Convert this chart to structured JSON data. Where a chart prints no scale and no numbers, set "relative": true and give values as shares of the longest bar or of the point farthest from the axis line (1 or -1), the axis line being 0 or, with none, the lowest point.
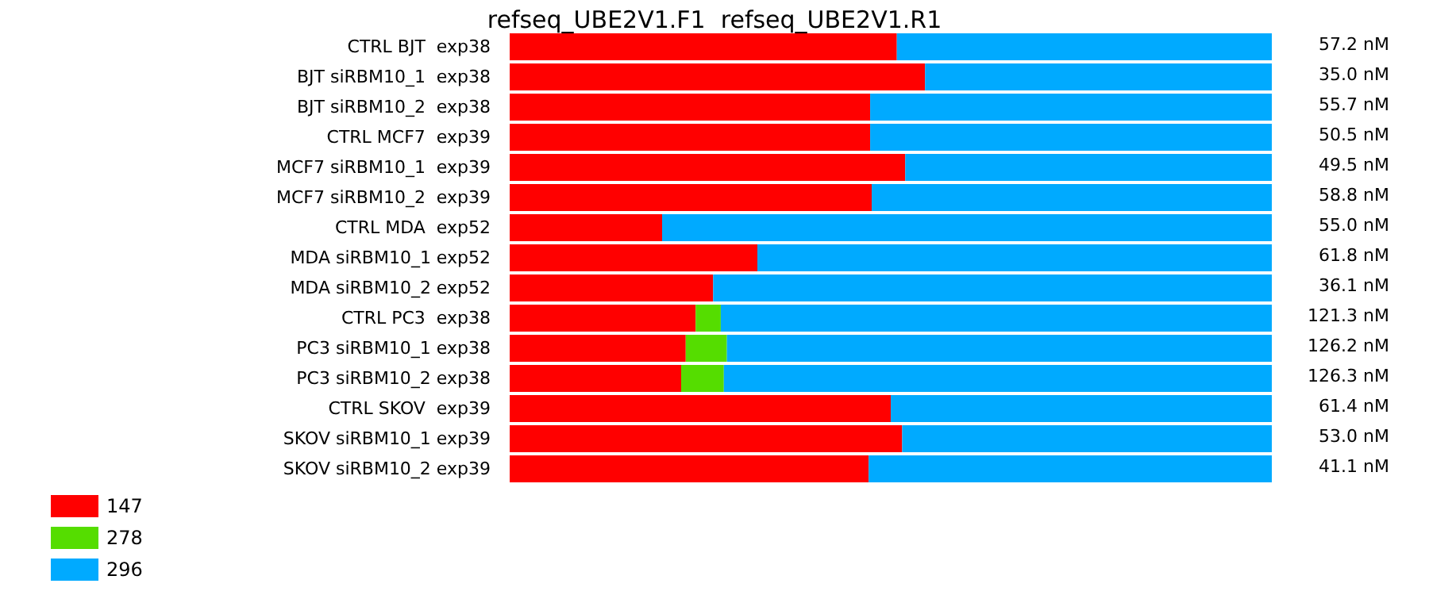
{
  "chart_data": {
    "type": "bar",
    "orientation": "horizontal",
    "stacked": true,
    "relative": true,
    "title": "refseq_UBE2V1.F1  refseq_UBE2V1.R1",
    "categories": [
      "CTRL BJT  exp38",
      "BJT siRBM10_1  exp38",
      "BJT siRBM10_2  exp38",
      "CTRL MCF7  exp39",
      "MCF7 siRBM10_1  exp39",
      "MCF7 siRBM10_2  exp39",
      "CTRL MDA  exp52",
      "MDA siRBM10_1 exp52",
      "MDA siRBM10_2 exp52",
      "CTRL PC3  exp38",
      "PC3 siRBM10_1 exp38",
      "PC3 siRBM10_2 exp38",
      "CTRL SKOV  exp39",
      "SKOV siRBM10_1 exp39",
      "SKOV siRBM10_2 exp39"
    ],
    "series": [
      {
        "name": "147",
        "color": "#ff0000",
        "values": [
          0.508,
          0.545,
          0.473,
          0.473,
          0.519,
          0.475,
          0.2,
          0.325,
          0.267,
          0.244,
          0.231,
          0.225,
          0.5,
          0.515,
          0.471
        ]
      },
      {
        "name": "278",
        "color": "#55dd00",
        "values": [
          null,
          null,
          null,
          null,
          null,
          null,
          null,
          null,
          null,
          0.033,
          0.054,
          0.056,
          null,
          null,
          null
        ]
      },
      {
        "name": "296",
        "color": "#00aaff",
        "values": [
          0.492,
          0.455,
          0.527,
          0.527,
          0.481,
          0.525,
          0.8,
          0.675,
          0.733,
          0.723,
          0.715,
          0.719,
          0.5,
          0.485,
          0.529
        ]
      }
    ],
    "legend": "bottom left",
    "grid": false,
    "annotations": [
      "57.2 nM",
      "35.0 nM",
      "55.7 nM",
      "50.5 nM",
      "49.5 nM",
      "58.8 nM",
      "55.0 nM",
      "61.8 nM",
      "36.1 nM",
      "121.3 nM",
      "126.2 nM",
      "126.3 nM",
      "61.4 nM",
      "53.0 nM",
      "41.1 nM"
    ]
  }
}
